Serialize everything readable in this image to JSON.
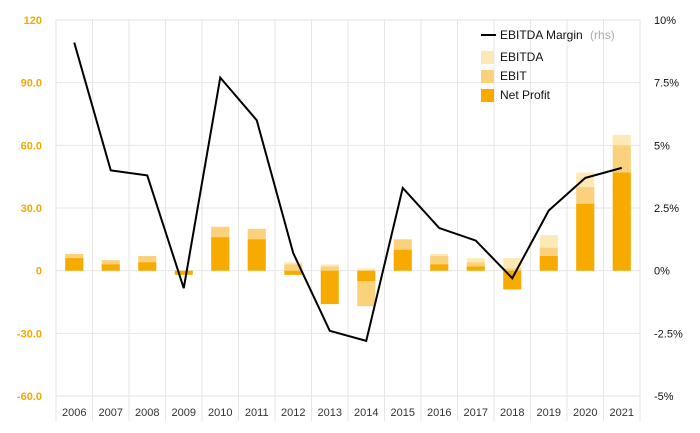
{
  "chart_data": {
    "type": "bar",
    "categories": [
      "2006",
      "2007",
      "2008",
      "2009",
      "2010",
      "2011",
      "2012",
      "2013",
      "2014",
      "2015",
      "2016",
      "2017",
      "2018",
      "2019",
      "2020",
      "2021"
    ],
    "series": [
      {
        "name": "EBITDA",
        "kind": "bar",
        "axis": "left",
        "values": [
          8,
          5,
          7,
          -1,
          21,
          20,
          4,
          3,
          1,
          15,
          8,
          6,
          6,
          17,
          47,
          65
        ]
      },
      {
        "name": "EBIT",
        "kind": "bar",
        "axis": "left",
        "values": [
          8,
          5,
          7,
          -1,
          21,
          20,
          3,
          2,
          -17,
          15,
          7,
          4,
          1,
          11,
          40,
          60
        ]
      },
      {
        "name": "Net Profit",
        "kind": "bar",
        "axis": "left",
        "values": [
          6,
          3,
          4,
          -2,
          16,
          15,
          -2,
          -16,
          -5,
          10,
          3,
          2,
          -9,
          7,
          32,
          47
        ]
      },
      {
        "name": "EBITDA Margin",
        "name_note": "(rhs)",
        "kind": "line",
        "axis": "right",
        "values": [
          9.1,
          4.0,
          3.8,
          -0.7,
          7.7,
          6.0,
          0.7,
          -2.4,
          -2.8,
          3.3,
          1.7,
          1.2,
          -0.3,
          2.4,
          3.7,
          4.1
        ]
      }
    ],
    "y_left": {
      "ylim": [
        -60,
        120
      ],
      "ticks": [
        120,
        90,
        60,
        30,
        0,
        -30,
        -60
      ],
      "tick_labels": [
        "120",
        "90.0",
        "60.0",
        "30.0",
        "0",
        "-30.0",
        "-60.0"
      ]
    },
    "y_right": {
      "ylim": [
        -5,
        10
      ],
      "ticks": [
        10,
        7.5,
        5,
        2.5,
        0,
        -2.5,
        -5
      ],
      "tick_labels": [
        "10%",
        "7.5%",
        "5%",
        "2.5%",
        "0%",
        "-2.5%",
        "-5%"
      ]
    },
    "grid": true,
    "legend_position": "top-right",
    "colors": {
      "ebitda": "#fde9b5",
      "ebit": "#fad27d",
      "net_profit": "#f7ab00",
      "margin_line": "#000000",
      "left_axis_text": "#f5a800",
      "grid": "#e6e6e6"
    }
  }
}
